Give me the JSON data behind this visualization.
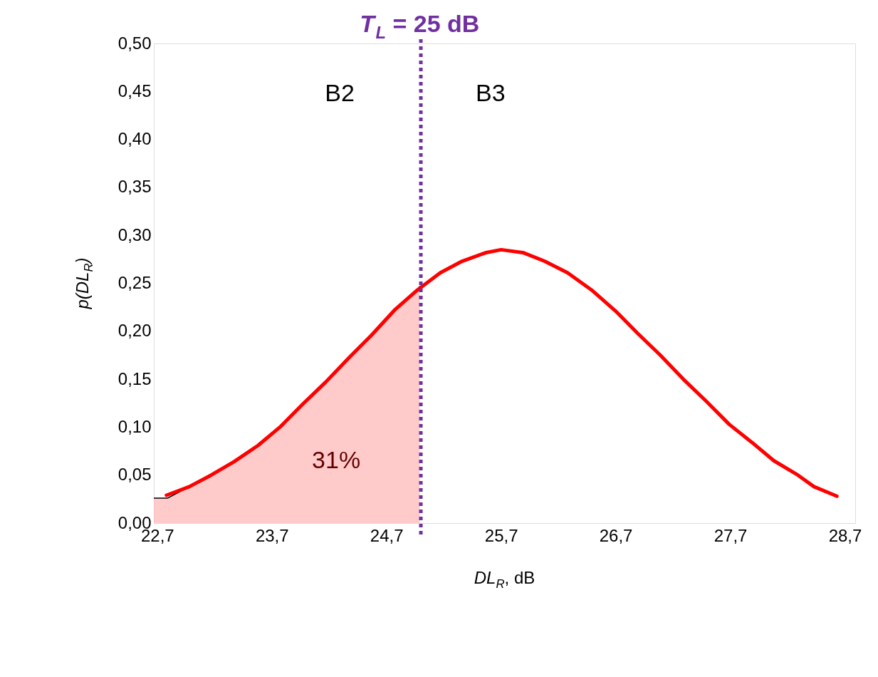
{
  "chart_data": {
    "type": "line",
    "xlabel": "DL$_{R}$, dB",
    "ylabel": "p(DL$_{R}$)",
    "xlim": [
      22.67,
      28.79
    ],
    "ylim": [
      0,
      0.5
    ],
    "xticks": [
      {
        "value": 22.7,
        "label": "22,7"
      },
      {
        "value": 23.7,
        "label": "23,7"
      },
      {
        "value": 24.7,
        "label": "24,7"
      },
      {
        "value": 25.7,
        "label": "25,7"
      },
      {
        "value": 26.7,
        "label": "26,7"
      },
      {
        "value": 27.7,
        "label": "27,7"
      },
      {
        "value": 28.7,
        "label": "28,7"
      }
    ],
    "yticks": [
      {
        "value": 0,
        "label": "0,00"
      },
      {
        "value": 0.05,
        "label": "0,05"
      },
      {
        "value": 0.1,
        "label": "0,10"
      },
      {
        "value": 0.15,
        "label": "0,15"
      },
      {
        "value": 0.2,
        "label": "0,20"
      },
      {
        "value": 0.25,
        "label": "0,25"
      },
      {
        "value": 0.3,
        "label": "0,30"
      },
      {
        "value": 0.35,
        "label": "0,35"
      },
      {
        "value": 0.4,
        "label": "0,40"
      },
      {
        "value": 0.45,
        "label": "0,45"
      },
      {
        "value": 0.5,
        "label": "0,50"
      }
    ],
    "grid": false,
    "series": [
      {
        "type": "area",
        "color": "#ffb3b3",
        "x": [
          22.67,
          22.79,
          22.98,
          23.17,
          23.37,
          23.58,
          23.77,
          23.97,
          24.17,
          24.37,
          24.57,
          24.77,
          24.97,
          24.99
        ],
        "values": [
          0.026,
          0.026,
          0.038,
          0.05,
          0.064,
          0.081,
          0.1,
          0.124,
          0.147,
          0.172,
          0.196,
          0.222,
          0.243,
          0.247
        ]
      },
      {
        "color": "#ff0000",
        "x": [
          22.78,
          22.98,
          23.17,
          23.37,
          23.58,
          23.77,
          23.97,
          24.17,
          24.37,
          24.57,
          24.77,
          24.97,
          25.17,
          25.36,
          25.57,
          25.7,
          25.89,
          26.08,
          26.28,
          26.49,
          26.7,
          26.89,
          27.09,
          27.29,
          27.49,
          27.69,
          27.89,
          28.08,
          28.29,
          28.43,
          28.63
        ],
        "values": [
          0.029,
          0.038,
          0.05,
          0.064,
          0.081,
          0.1,
          0.124,
          0.147,
          0.172,
          0.196,
          0.222,
          0.243,
          0.261,
          0.273,
          0.282,
          0.285,
          0.282,
          0.273,
          0.261,
          0.243,
          0.221,
          0.198,
          0.175,
          0.15,
          0.127,
          0.103,
          0.084,
          0.065,
          0.05,
          0.038,
          0.028
        ]
      }
    ],
    "ref_lines": [
      {
        "axis": "x",
        "value": 25,
        "label": "T$_{L}$ = 25 dB",
        "color": "#7030a0",
        "line_style": "dotted"
      }
    ],
    "annotations": [
      "B2",
      "B3",
      "31%"
    ]
  }
}
